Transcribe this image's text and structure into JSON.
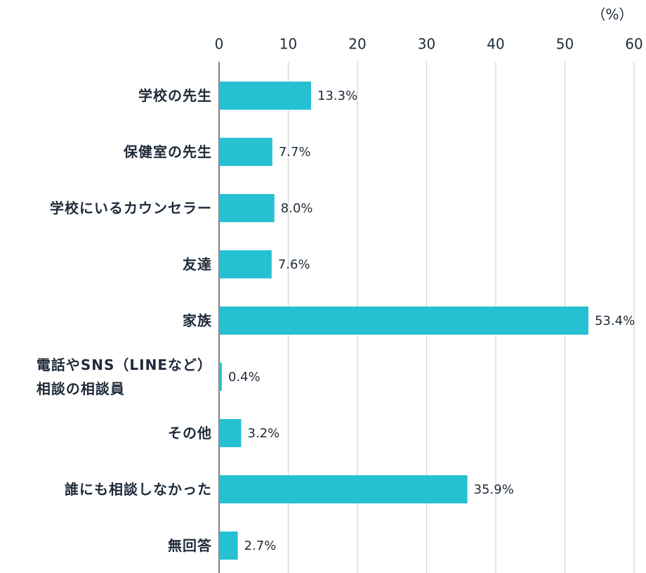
{
  "chart_data": {
    "type": "bar",
    "orientation": "horizontal",
    "unit_label": "（%）",
    "categories": [
      "学校の先生",
      "保健室の先生",
      "学校にいるカウンセラー",
      "友達",
      "家族",
      "電話やSNS（LINEなど）\n相談の相談員",
      "その他",
      "誰にも相談しなかった",
      "無回答"
    ],
    "values": [
      13.3,
      7.7,
      8.0,
      7.6,
      53.4,
      0.4,
      3.2,
      35.9,
      2.7
    ],
    "value_labels": [
      "13.3%",
      "7.7%",
      "8.0%",
      "7.6%",
      "53.4%",
      "0.4%",
      "3.2%",
      "35.9%",
      "2.7%"
    ],
    "color": "#26c0d3",
    "xlim": [
      0,
      60
    ],
    "xticks": [
      0,
      10,
      20,
      30,
      40,
      50,
      60
    ],
    "grid": true
  }
}
